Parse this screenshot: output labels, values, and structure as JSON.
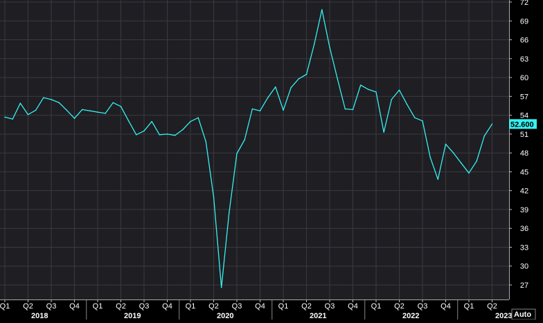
{
  "chart_data": {
    "type": "line",
    "title": "",
    "xlabel": "",
    "ylabel": "",
    "ylim": [
      24,
      72
    ],
    "grid": true,
    "legend": "none",
    "yticks": [
      27,
      30,
      33,
      36,
      39,
      42,
      45,
      48,
      51,
      54,
      57,
      60,
      63,
      66,
      69,
      72
    ],
    "quarter_labels": [
      "Q1",
      "Q2",
      "Q3",
      "Q4",
      "Q1",
      "Q2",
      "Q3",
      "Q4",
      "Q1",
      "Q2",
      "Q3",
      "Q4",
      "Q1",
      "Q2",
      "Q3",
      "Q4",
      "Q1",
      "Q2",
      "Q3",
      "Q4",
      "Q1",
      "Q2"
    ],
    "year_labels": [
      "2018",
      "2019",
      "2020",
      "2021",
      "2022",
      "2023"
    ],
    "last_value_label": "52.600",
    "auto_label": "Auto",
    "colors": {
      "background": "#000000",
      "plot_background": "#1f1e23",
      "grid": "#3a3a40",
      "line": "#35f2f2",
      "axis_text": "#ffffff",
      "value_tag_bg": "#35f2f2",
      "value_tag_text": "#000000"
    },
    "series": [
      {
        "x": [
          "2018-01",
          "2018-02",
          "2018-03",
          "2018-04",
          "2018-05",
          "2018-06",
          "2018-07",
          "2018-08",
          "2018-09",
          "2018-10",
          "2018-11",
          "2018-12",
          "2019-01",
          "2019-02",
          "2019-03",
          "2019-04",
          "2019-05",
          "2019-06",
          "2019-07",
          "2019-08",
          "2019-09",
          "2019-10",
          "2019-11",
          "2019-12",
          "2020-01",
          "2020-02",
          "2020-03",
          "2020-04",
          "2020-05",
          "2020-06",
          "2020-07",
          "2020-08",
          "2020-09",
          "2020-10",
          "2020-11",
          "2020-12",
          "2021-01",
          "2021-02",
          "2021-03",
          "2021-04",
          "2021-05",
          "2021-06",
          "2021-07",
          "2021-08",
          "2021-09",
          "2021-10",
          "2021-11",
          "2021-12",
          "2022-01",
          "2022-02",
          "2022-03",
          "2022-04",
          "2022-05",
          "2022-06",
          "2022-07",
          "2022-08",
          "2022-09",
          "2022-10",
          "2022-11",
          "2022-12",
          "2023-01",
          "2023-02",
          "2023-03",
          "2023-04"
        ],
        "values": [
          53.7,
          53.4,
          55.9,
          54.1,
          54.8,
          56.8,
          56.5,
          56.0,
          54.8,
          53.5,
          54.9,
          54.7,
          54.5,
          54.3,
          56.0,
          55.4,
          53.1,
          50.9,
          51.5,
          53.0,
          50.9,
          51.0,
          50.8,
          51.7,
          53.0,
          53.6,
          49.8,
          41.0,
          26.6,
          38.5,
          47.9,
          50.1,
          55.0,
          54.7,
          56.8,
          58.5,
          54.8,
          58.4,
          59.8,
          60.5,
          65.3,
          70.8,
          64.8,
          59.8,
          55.0,
          54.9,
          58.8,
          58.1,
          57.7,
          51.3,
          56.5,
          58.0,
          55.7,
          53.6,
          53.1,
          47.3,
          43.8,
          49.4,
          48.0,
          46.4,
          44.8,
          46.7,
          50.7,
          52.6
        ]
      }
    ]
  }
}
